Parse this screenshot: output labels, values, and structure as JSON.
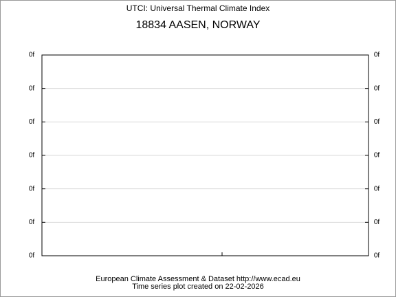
{
  "chart_data": {
    "type": "line",
    "title": "UTCI: Universal Thermal Climate Index",
    "subtitle": "18834 AASEN, NORWAY",
    "footer": [
      "European Climate Assessment & Dataset  http://www.ecad.eu",
      "Time series plot created on 22-02-2026"
    ],
    "ylim": [
      0,
      6
    ],
    "yticks": [
      {
        "value": 0,
        "label": "0f"
      },
      {
        "value": 1,
        "label": "0f"
      },
      {
        "value": 2,
        "label": "0f"
      },
      {
        "value": 3,
        "label": "0f"
      },
      {
        "value": 4,
        "label": "0f"
      },
      {
        "value": 5,
        "label": "0f"
      },
      {
        "value": 6,
        "label": "0f"
      }
    ],
    "grid": true
  }
}
